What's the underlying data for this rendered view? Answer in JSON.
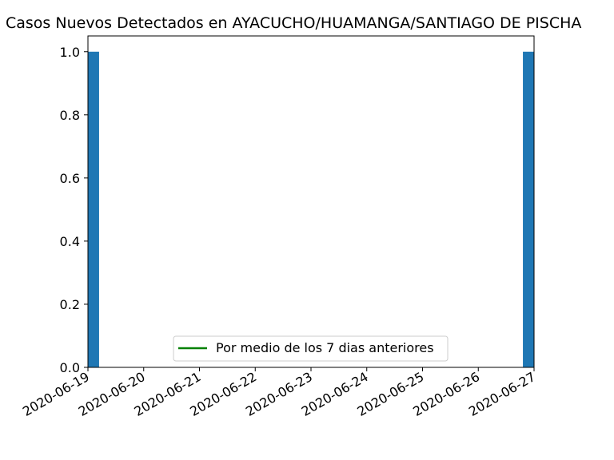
{
  "chart_data": {
    "type": "bar",
    "title": "Casos Nuevos Detectados en AYACUCHO/HUAMANGA/SANTIAGO DE PISCHA",
    "xlabel": "",
    "ylabel": "",
    "x_ticks": [
      "2020-06-19",
      "2020-06-20",
      "2020-06-21",
      "2020-06-22",
      "2020-06-23",
      "2020-06-24",
      "2020-06-25",
      "2020-06-26",
      "2020-06-27"
    ],
    "y_ticks": [
      "0.0",
      "0.2",
      "0.4",
      "0.6",
      "0.8",
      "1.0"
    ],
    "ylim": [
      0,
      1.05
    ],
    "series": [
      {
        "type": "bar",
        "color": "#1f77b4",
        "points": [
          {
            "x": "2020-06-19",
            "value": 1
          },
          {
            "x": "2020-06-27",
            "value": 1
          }
        ]
      },
      {
        "type": "line",
        "name": "Por medio de los 7 dias anteriores",
        "color": "#008000",
        "points": []
      }
    ],
    "legend": {
      "position": "lower center",
      "entries": [
        {
          "label": "Por medio de los 7 dias anteriores",
          "color": "#008000"
        }
      ]
    },
    "grid": false
  }
}
